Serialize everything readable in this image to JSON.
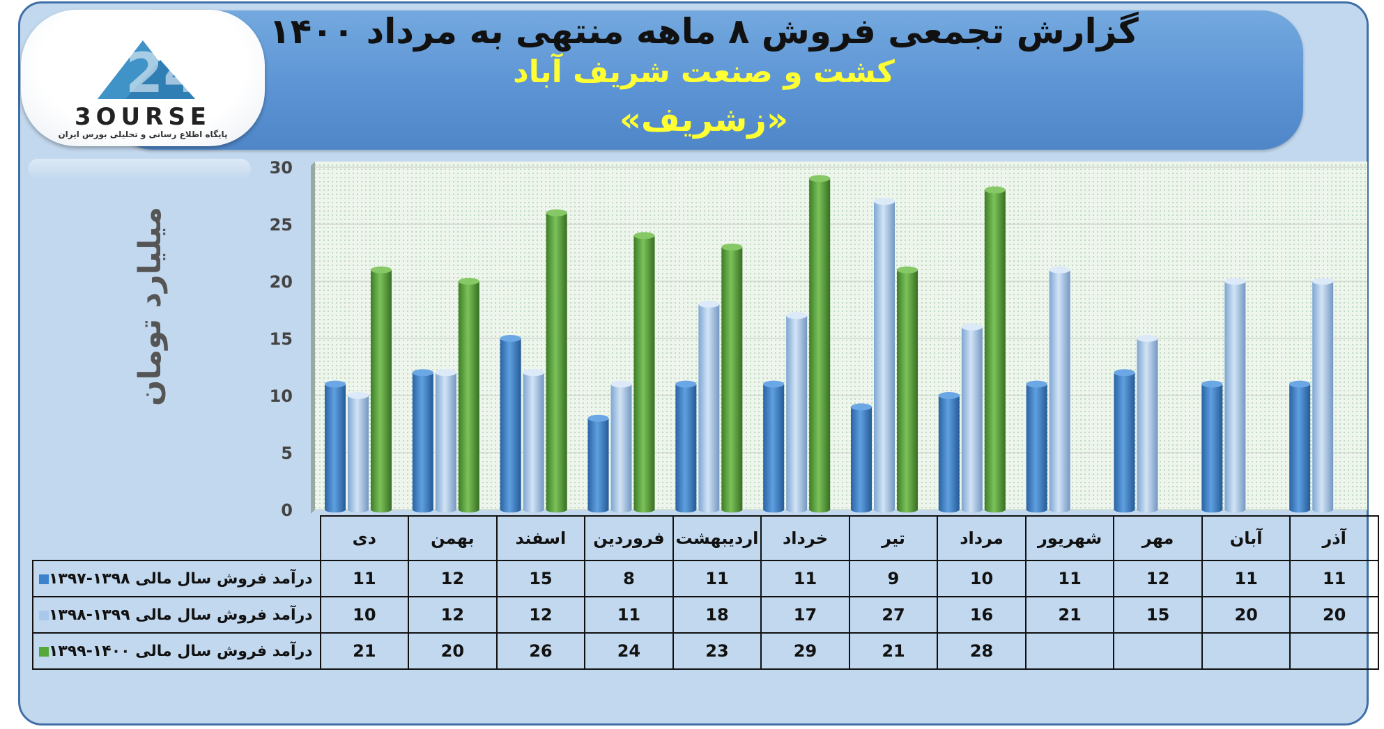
{
  "header": {
    "title": "گزارش تجمعی فروش ۸ ماهه منتهی به مرداد ۱۴۰۰",
    "company": "کشت و صنعت شریف آباد",
    "symbol": "«زشریف»"
  },
  "logo": {
    "word": "3OURSE",
    "subtitle": "پایگاه اطلاع رسانی و تحلیلی بورس ایران",
    "icon": "bourse-24-logo-icon"
  },
  "colors": {
    "series1": "#3d82cc",
    "series2": "#a9c9ec",
    "series3": "#55a83a",
    "plot_bg": "#e6f0e4"
  },
  "chart_data": {
    "type": "bar",
    "ylabel": "میلیارد تومان",
    "ylim": [
      0,
      30
    ],
    "yticks": [
      0,
      5,
      10,
      15,
      20,
      25,
      30
    ],
    "categories": [
      "دی",
      "بهمن",
      "اسفند",
      "فروردین",
      "اردیبهشت",
      "خرداد",
      "تیر",
      "مرداد",
      "شهریور",
      "مهر",
      "آبان",
      "آذر"
    ],
    "series": [
      {
        "name": "درآمد فروش سال مالی ۱۳۹۸-۱۳۹۷",
        "values": [
          11,
          12,
          15,
          8,
          11,
          11,
          9,
          10,
          11,
          12,
          11,
          11
        ]
      },
      {
        "name": "درآمد فروش سال مالی ۱۳۹۹-۱۳۹۸",
        "values": [
          10,
          12,
          12,
          11,
          18,
          17,
          27,
          16,
          21,
          15,
          20,
          20
        ]
      },
      {
        "name": "درآمد فروش سال مالی ۱۴۰۰-۱۳۹۹",
        "values": [
          21,
          20,
          26,
          24,
          23,
          29,
          21,
          28,
          null,
          null,
          null,
          null
        ]
      }
    ],
    "grid": true,
    "legend": "table-below"
  }
}
